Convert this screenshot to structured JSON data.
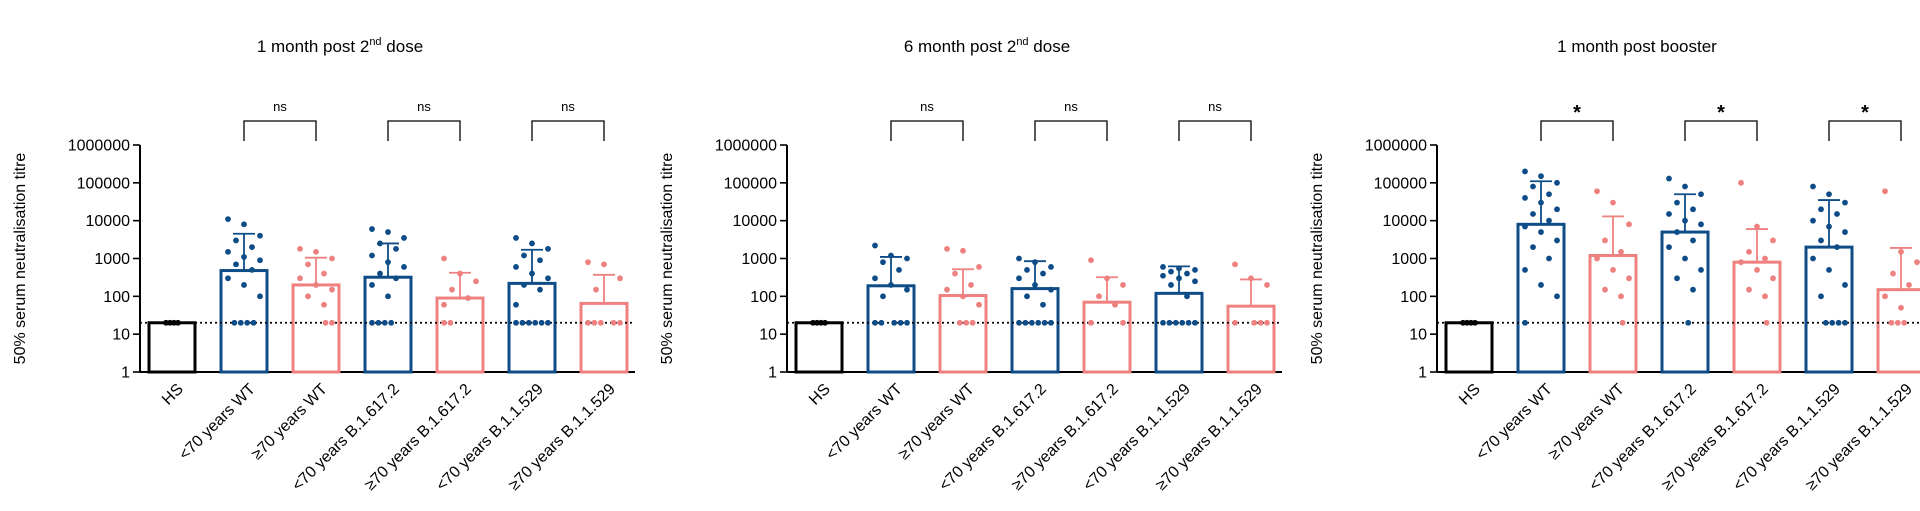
{
  "colors": {
    "hs": "#000000",
    "young": "#0d4c86",
    "old": "#ee8080"
  },
  "chart_data": [
    {
      "type": "bar",
      "title": "1 month post 2nd dose",
      "title_main": "1 month post 2",
      "title_sup": "nd",
      "title_end": " dose",
      "ylabel": "50% serum neutralisation titre",
      "yscale": "log",
      "ylim": [
        1,
        1000000
      ],
      "yticks": [
        "1",
        "10",
        "100",
        "1000",
        "10000",
        "100000",
        "1000000"
      ],
      "threshold": 20,
      "categories": [
        "HS",
        "<70 years WT",
        "≥70 years WT",
        "<70 years B.1.617.2",
        "≥70 years B.1.617.2",
        "<70 years B.1.1.529",
        "≥70 years B.1.1.529"
      ],
      "values": [
        20,
        480,
        200,
        320,
        90,
        220,
        65
      ],
      "sd_upper": [
        null,
        4500,
        1050,
        2500,
        420,
        1700,
        370
      ],
      "comparisons": [
        {
          "pair": [
            1,
            2
          ],
          "label": "ns"
        },
        {
          "pair": [
            3,
            4
          ],
          "label": "ns"
        },
        {
          "pair": [
            5,
            6
          ],
          "label": "ns"
        }
      ],
      "points": [
        [
          20,
          20,
          20,
          20
        ],
        [
          11000,
          8000,
          4000,
          3000,
          2000,
          1500,
          1100,
          900,
          700,
          500,
          300,
          200,
          100,
          20,
          20,
          20,
          20
        ],
        [
          1800,
          1500,
          1000,
          700,
          400,
          300,
          200,
          150,
          100,
          60,
          20,
          20
        ],
        [
          6000,
          5000,
          3500,
          2500,
          1800,
          1200,
          800,
          600,
          400,
          300,
          200,
          100,
          20,
          20,
          20,
          20
        ],
        [
          1000,
          400,
          250,
          150,
          90,
          60,
          20,
          20
        ],
        [
          3500,
          2500,
          1800,
          1200,
          900,
          600,
          400,
          300,
          200,
          150,
          60,
          20,
          20,
          20,
          20,
          20,
          20
        ],
        [
          800,
          700,
          300,
          150,
          20,
          20,
          20,
          20,
          20
        ]
      ]
    },
    {
      "type": "bar",
      "title": "6 month post 2nd dose",
      "title_main": "6 month post 2",
      "title_sup": "nd",
      "title_end": " dose",
      "ylabel": "50% serum neutralisation titre",
      "yscale": "log",
      "ylim": [
        1,
        1000000
      ],
      "yticks": [
        "1",
        "10",
        "100",
        "1000",
        "10000",
        "100000",
        "1000000"
      ],
      "threshold": 20,
      "categories": [
        "HS",
        "<70 years WT",
        "≥70 years WT",
        "<70 years B.1.617.2",
        "≥70 years B.1.617.2",
        "<70 years B.1.1.529",
        "≥70 years B.1.1.529"
      ],
      "values": [
        20,
        190,
        105,
        160,
        70,
        120,
        55
      ],
      "sd_upper": [
        null,
        1100,
        520,
        850,
        320,
        620,
        280
      ],
      "comparisons": [
        {
          "pair": [
            1,
            2
          ],
          "label": "ns"
        },
        {
          "pair": [
            3,
            4
          ],
          "label": "ns"
        },
        {
          "pair": [
            5,
            6
          ],
          "label": "ns"
        }
      ],
      "points": [
        [
          20,
          20,
          20,
          20
        ],
        [
          2200,
          1200,
          1000,
          800,
          500,
          300,
          200,
          150,
          100,
          20,
          20,
          20,
          20,
          20
        ],
        [
          1800,
          1600,
          600,
          400,
          200,
          150,
          100,
          60,
          20,
          20,
          20
        ],
        [
          1000,
          800,
          600,
          500,
          400,
          300,
          200,
          150,
          100,
          60,
          20,
          20,
          20,
          20,
          20,
          20
        ],
        [
          900,
          300,
          200,
          100,
          60,
          20,
          20
        ],
        [
          600,
          550,
          500,
          450,
          400,
          350,
          300,
          250,
          200,
          100,
          20,
          20,
          20,
          20,
          20,
          20
        ],
        [
          700,
          300,
          200,
          20,
          20,
          20,
          20
        ]
      ]
    },
    {
      "type": "bar",
      "title": "1 month post booster",
      "title_main": "1 month post booster",
      "title_sup": "",
      "title_end": "",
      "ylabel": "50% serum neutralisation titre",
      "yscale": "log",
      "ylim": [
        1,
        1000000
      ],
      "yticks": [
        "1",
        "10",
        "100",
        "1000",
        "10000",
        "100000",
        "1000000"
      ],
      "threshold": 20,
      "categories": [
        "HS",
        "<70 years WT",
        "≥70 years WT",
        "<70 years B.1.617.2",
        "≥70 years B.1.617.2",
        "<70 years B.1.1.529",
        "≥70 years B.1.1.529"
      ],
      "values": [
        20,
        8000,
        1200,
        5000,
        800,
        2000,
        150
      ],
      "sd_upper": [
        null,
        110000,
        13000,
        50000,
        6000,
        35000,
        1900
      ],
      "comparisons": [
        {
          "pair": [
            1,
            2
          ],
          "label": "*"
        },
        {
          "pair": [
            3,
            4
          ],
          "label": "*"
        },
        {
          "pair": [
            5,
            6
          ],
          "label": "*"
        }
      ],
      "points": [
        [
          20,
          20,
          20,
          20
        ],
        [
          200000,
          150000,
          100000,
          80000,
          50000,
          40000,
          30000,
          20000,
          15000,
          10000,
          7000,
          5000,
          3000,
          2000,
          1000,
          500,
          200,
          100,
          20
        ],
        [
          60000,
          30000,
          8000,
          3000,
          1500,
          1000,
          500,
          300,
          150,
          100,
          20
        ],
        [
          130000,
          80000,
          50000,
          30000,
          20000,
          15000,
          10000,
          8000,
          5000,
          3000,
          2000,
          1000,
          500,
          300,
          150,
          20
        ],
        [
          100000,
          7000,
          3000,
          1500,
          1000,
          800,
          500,
          300,
          150,
          100,
          20
        ],
        [
          80000,
          50000,
          30000,
          20000,
          15000,
          10000,
          7000,
          5000,
          3000,
          2000,
          1000,
          500,
          200,
          100,
          20,
          20,
          20,
          20
        ],
        [
          60000,
          1500,
          800,
          400,
          200,
          100,
          50,
          20,
          20,
          20
        ]
      ]
    }
  ]
}
